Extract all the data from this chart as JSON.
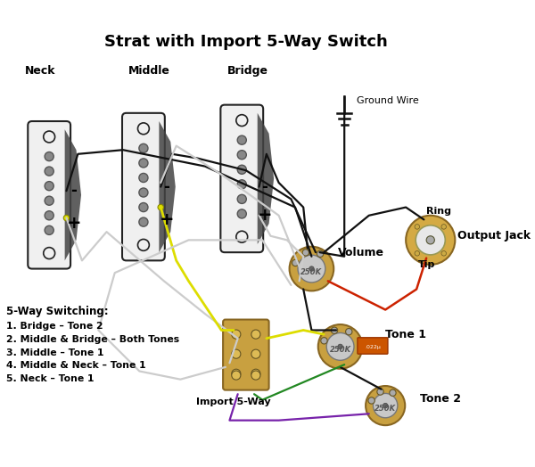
{
  "title": "Strat with Import 5-Way Switch",
  "title_fontsize": 13,
  "title_fontweight": "bold",
  "background_color": "#ffffff",
  "labels": {
    "neck": "Neck",
    "middle": "Middle",
    "bridge": "Bridge",
    "ground_wire": "Ground Wire",
    "volume": "Volume",
    "output_jack": "Output Jack",
    "ring": "Ring",
    "tip": "Tip",
    "tone1": "Tone 1",
    "tone2": "Tone 2",
    "switch_label": "Import 5-Way",
    "switching_header": "5-Way Switching:",
    "switching_list": [
      "1. Bridge – Tone 2",
      "2. Middle & Bridge – Both Tones",
      "3. Middle – Tone 1",
      "4. Middle & Neck – Tone 1",
      "5. Neck – Tone 1"
    ]
  },
  "colors": {
    "wire_black": "#111111",
    "wire_white": "#cccccc",
    "wire_yellow": "#dddd00",
    "wire_red": "#cc2200",
    "wire_green": "#228822",
    "wire_purple": "#7722aa",
    "pickup_white": "#f0f0f0",
    "pickup_outline": "#222222",
    "pickup_shadow": "#444444",
    "pickup_pole": "#888888",
    "pot_outer": "#c8a040",
    "pot_body": "#d4aa50",
    "pot_center": "#c8c8c8",
    "pot_text": "#555555",
    "cap_color": "#cc5500",
    "switch_body": "#c8a040",
    "switch_contact": "#ddbb55",
    "jack_outer": "#d4aa44",
    "jack_inner": "#e8cc66",
    "ground_color": "#111111",
    "label_color": "#000000",
    "screw_color": "#999999"
  },
  "figsize": [
    6.0,
    5.24
  ],
  "dpi": 100
}
